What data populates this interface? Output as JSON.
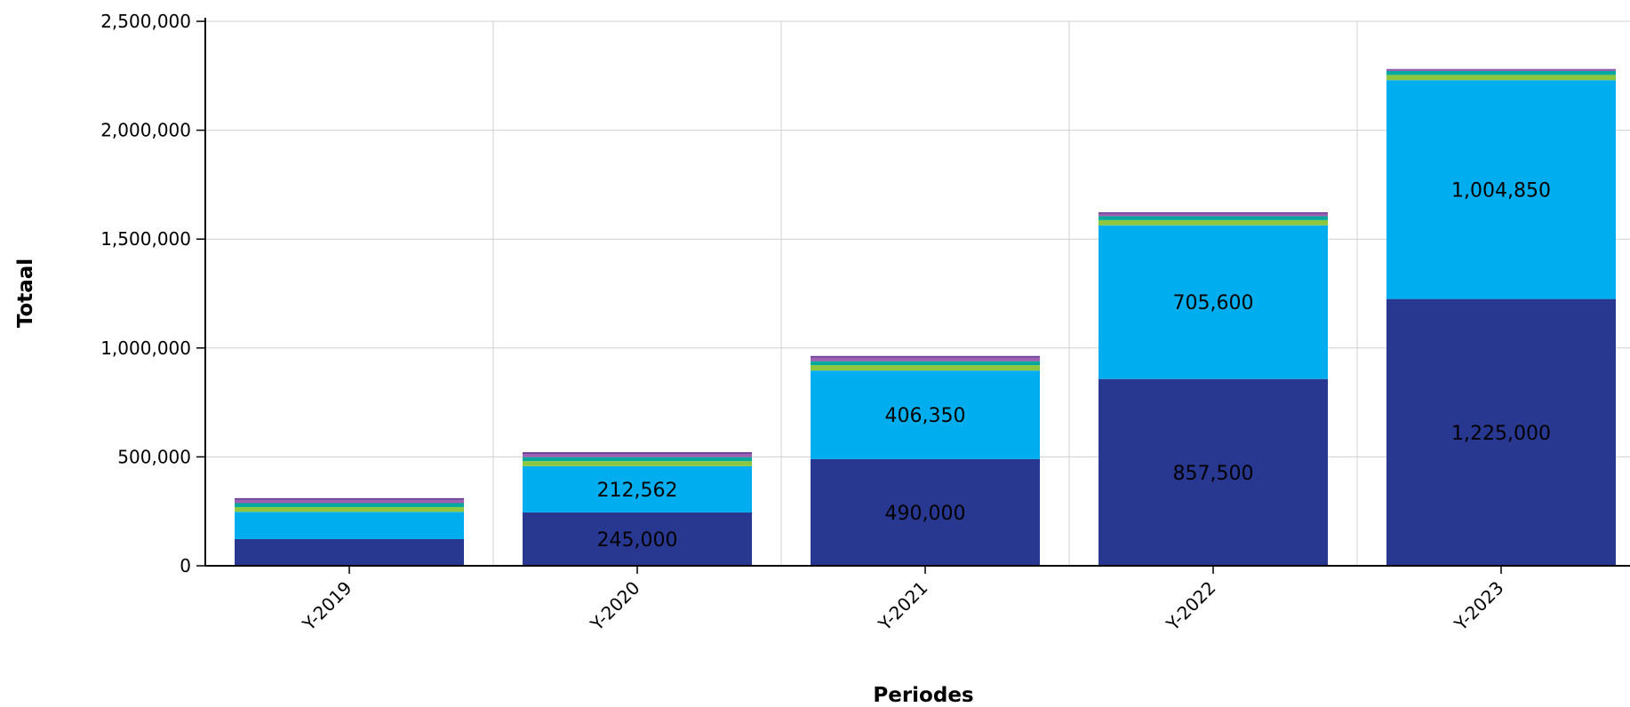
{
  "chart_data": {
    "type": "bar",
    "stacked": true,
    "title": "",
    "xlabel": "Periodes",
    "ylabel": "Totaal",
    "ylim": [
      0,
      2500000
    ],
    "yticks": [
      0,
      500000,
      1000000,
      1500000,
      2000000,
      2500000
    ],
    "ytick_labels": [
      "0",
      "500,000",
      "1,000,000",
      "1,500,000",
      "2,000,000",
      "2,500,000"
    ],
    "grid": true,
    "legend": "none",
    "categories": [
      "Y-2019",
      "Y-2020",
      "Y-2021",
      "Y-2022",
      "Y-2023"
    ],
    "series": [
      {
        "color": "#283891",
        "values": [
          122500,
          245000,
          490000,
          857500,
          1225000
        ],
        "labels": [
          "",
          "245,000",
          "490,000",
          "857,500",
          "1,225,000"
        ]
      },
      {
        "color": "#00aeef",
        "values": [
          125000,
          212562,
          406350,
          705600,
          1004850
        ],
        "labels": [
          "",
          "212,562",
          "406,350",
          "705,600",
          "1,004,850"
        ]
      },
      {
        "color": "#8dc63f",
        "values": [
          22000,
          23000,
          25000,
          24000,
          24000
        ],
        "labels": [
          "",
          "",
          "",
          "",
          ""
        ]
      },
      {
        "color": "#00a99d",
        "values": [
          18000,
          18000,
          18000,
          18000,
          18000
        ],
        "labels": [
          "",
          "",
          "",
          "",
          ""
        ]
      },
      {
        "color": "#9e5fb0",
        "values": [
          15000,
          15000,
          16000,
          12000,
          6000
        ],
        "labels": [
          "",
          "",
          "",
          "",
          ""
        ]
      },
      {
        "color": "#6a3d9a",
        "values": [
          8000,
          8000,
          8000,
          6000,
          3000
        ],
        "labels": [
          "",
          "",
          "",
          "",
          ""
        ]
      }
    ]
  }
}
